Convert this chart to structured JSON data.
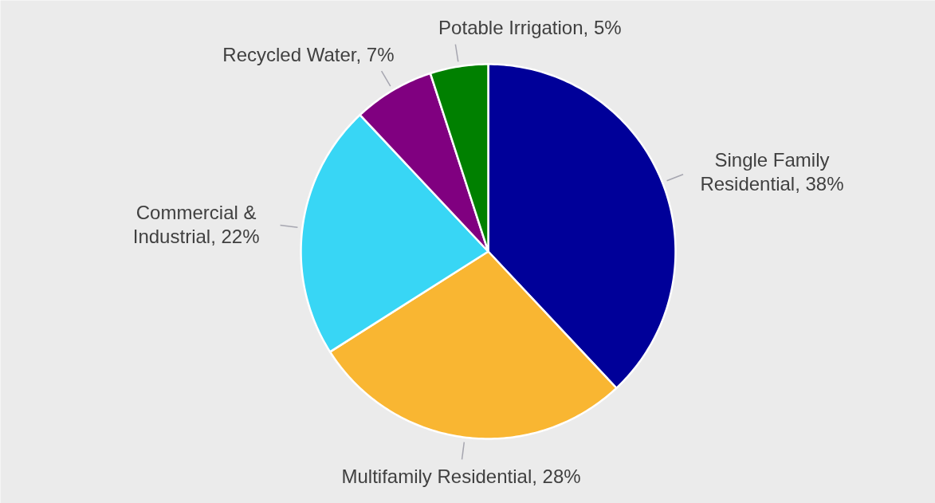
{
  "chart_data": {
    "type": "pie",
    "categories": [
      "Single Family Residential",
      "Multifamily Residential",
      "Commercial & Industrial",
      "Recycled Water",
      "Potable Irrigation"
    ],
    "values": [
      38,
      28,
      22,
      7,
      5
    ],
    "value_labels": [
      "38%",
      "28%",
      "22%",
      "7%",
      "5%"
    ],
    "colors": [
      "#000099",
      "#f9b632",
      "#38d6f5",
      "#800080",
      "#008000"
    ],
    "legend": false
  }
}
